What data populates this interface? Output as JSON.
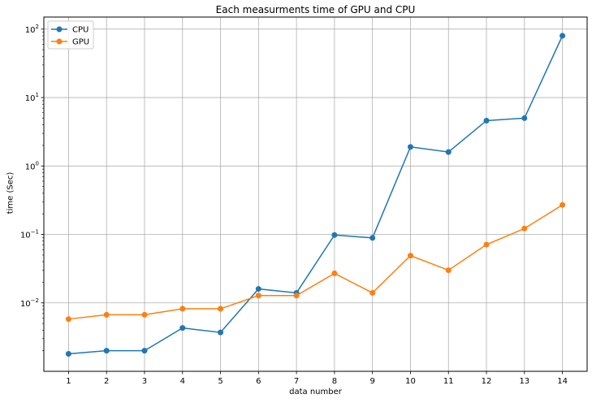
{
  "chart_data": {
    "type": "line",
    "title": "Each measurments time of GPU and CPU",
    "xlabel": "data number",
    "ylabel": "time (Sec)",
    "y_scale": "log",
    "ylim": [
      0.001,
      150
    ],
    "xlim": [
      0.35,
      14.65
    ],
    "x": [
      1,
      2,
      3,
      4,
      5,
      6,
      7,
      8,
      9,
      10,
      11,
      12,
      13,
      14
    ],
    "x_ticks": [
      "1",
      "2",
      "3",
      "4",
      "5",
      "6",
      "7",
      "8",
      "9",
      "10",
      "11",
      "12",
      "13",
      "14"
    ],
    "y_ticks": [
      {
        "value": 0.01,
        "base": "10",
        "exp": "−2"
      },
      {
        "value": 0.1,
        "base": "10",
        "exp": "−1"
      },
      {
        "value": 1,
        "base": "10",
        "exp": "0"
      },
      {
        "value": 10,
        "base": "10",
        "exp": "1"
      },
      {
        "value": 100,
        "base": "10",
        "exp": "2"
      }
    ],
    "grid": true,
    "legend_position": "top-left",
    "series": [
      {
        "name": "CPU",
        "color": "#1f77b4",
        "values": [
          0.0018,
          0.002,
          0.002,
          0.0043,
          0.0037,
          0.016,
          0.014,
          0.098,
          0.089,
          1.9,
          1.6,
          4.6,
          5.0,
          80
        ]
      },
      {
        "name": "GPU",
        "color": "#ff7f0e",
        "values": [
          0.0058,
          0.0067,
          0.0067,
          0.0082,
          0.0082,
          0.0128,
          0.0128,
          0.027,
          0.014,
          0.049,
          0.03,
          0.071,
          0.122,
          0.27
        ]
      }
    ]
  }
}
